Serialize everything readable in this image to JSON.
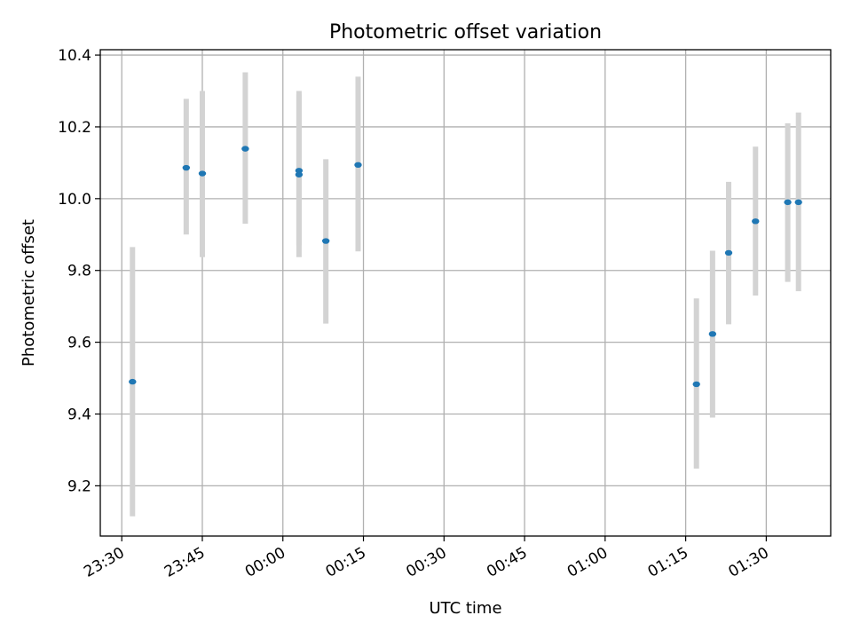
{
  "chart_data": {
    "type": "scatter",
    "title": "Photometric offset variation",
    "xlabel": "UTC time",
    "ylabel": "Photometric offset",
    "grid": true,
    "colors": {
      "point": "#1f77b4",
      "errorbar": "#d3d3d3"
    },
    "xlim": [
      "23:26",
      "01:42"
    ],
    "ylim": [
      9.06,
      10.415
    ],
    "x_ticks": [
      "23:30",
      "23:45",
      "00:00",
      "00:15",
      "00:30",
      "00:45",
      "01:00",
      "01:15",
      "01:30"
    ],
    "y_ticks": [
      "9.2",
      "9.4",
      "9.6",
      "9.8",
      "10.0",
      "10.2",
      "10.4"
    ],
    "points": [
      {
        "time": "23:32",
        "y": 9.49,
        "yerr_low": 9.115,
        "yerr_high": 9.865
      },
      {
        "time": "23:42",
        "y": 10.086,
        "yerr_low": 9.9,
        "yerr_high": 10.278
      },
      {
        "time": "23:45",
        "y": 10.07,
        "yerr_low": 9.837,
        "yerr_high": 10.3
      },
      {
        "time": "23:53",
        "y": 10.139,
        "yerr_low": 9.93,
        "yerr_high": 10.352
      },
      {
        "time": "00:03",
        "y": 10.078,
        "yerr_low": 9.87,
        "yerr_high": 10.29
      },
      {
        "time": "00:03",
        "y": 10.067,
        "yerr_low": 9.837,
        "yerr_high": 10.3
      },
      {
        "time": "00:08",
        "y": 9.882,
        "yerr_low": 9.652,
        "yerr_high": 10.11
      },
      {
        "time": "00:14",
        "y": 10.094,
        "yerr_low": 9.853,
        "yerr_high": 10.34
      },
      {
        "time": "01:17",
        "y": 9.483,
        "yerr_low": 9.248,
        "yerr_high": 9.722
      },
      {
        "time": "01:20",
        "y": 9.623,
        "yerr_low": 9.39,
        "yerr_high": 9.855
      },
      {
        "time": "01:23",
        "y": 9.849,
        "yerr_low": 9.65,
        "yerr_high": 10.047
      },
      {
        "time": "01:28",
        "y": 9.937,
        "yerr_low": 9.73,
        "yerr_high": 10.145
      },
      {
        "time": "01:34",
        "y": 9.99,
        "yerr_low": 9.768,
        "yerr_high": 10.21
      },
      {
        "time": "01:36",
        "y": 9.99,
        "yerr_low": 9.742,
        "yerr_high": 10.24
      }
    ]
  }
}
